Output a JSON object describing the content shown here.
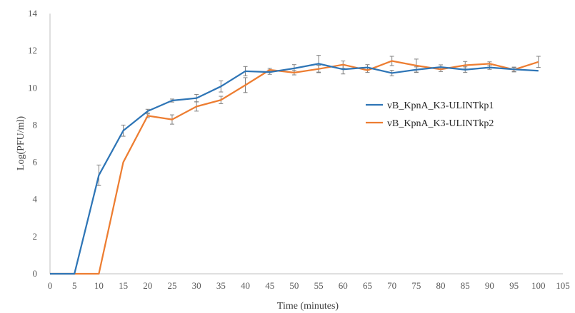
{
  "chart_data": {
    "type": "line",
    "title": "",
    "xlabel": "Time (minutes)",
    "ylabel": "Log(PFU/ml)",
    "xlim": [
      0,
      105
    ],
    "ylim": [
      0,
      14
    ],
    "x_ticks": [
      0,
      5,
      10,
      15,
      20,
      25,
      30,
      35,
      40,
      45,
      50,
      55,
      60,
      65,
      70,
      75,
      80,
      85,
      90,
      95,
      100,
      105
    ],
    "y_ticks": [
      0,
      2,
      4,
      6,
      8,
      10,
      12,
      14
    ],
    "grid": false,
    "legend_position": "right",
    "x": [
      0,
      5,
      10,
      15,
      20,
      25,
      30,
      35,
      40,
      45,
      50,
      55,
      60,
      65,
      70,
      75,
      80,
      85,
      90,
      95,
      100
    ],
    "series": [
      {
        "name": "vB_KpnA_K3-ULINTkp1",
        "color": "#2E75B6",
        "values": [
          0,
          0,
          5.3,
          7.7,
          8.75,
          9.32,
          9.45,
          10.08,
          10.9,
          10.85,
          11.05,
          11.3,
          11.0,
          11.1,
          10.8,
          10.98,
          11.12,
          10.98,
          11.1,
          11.0,
          10.92
        ],
        "errors": [
          0,
          0,
          0.55,
          0.3,
          0.1,
          0.08,
          0.2,
          0.3,
          0.25,
          0.12,
          0.2,
          0.45,
          0.25,
          0.15,
          0.15,
          0.15,
          0.12,
          0.15,
          0.1,
          0.12,
          0
        ]
      },
      {
        "name": "vB_KpnA_K3-ULINTkp2",
        "color": "#ED7D31",
        "values": [
          0,
          0,
          0,
          6.0,
          8.5,
          8.3,
          9.0,
          9.35,
          10.15,
          10.97,
          10.82,
          11.02,
          11.25,
          10.95,
          11.45,
          11.2,
          11.0,
          11.22,
          11.3,
          10.98,
          11.4
        ],
        "errors": [
          0,
          0,
          0,
          0,
          0.1,
          0.25,
          0.25,
          0.2,
          0.4,
          0.08,
          0.12,
          0.2,
          0.2,
          0.12,
          0.25,
          0.35,
          0.12,
          0.2,
          0.1,
          0.12,
          0.3
        ]
      }
    ]
  }
}
